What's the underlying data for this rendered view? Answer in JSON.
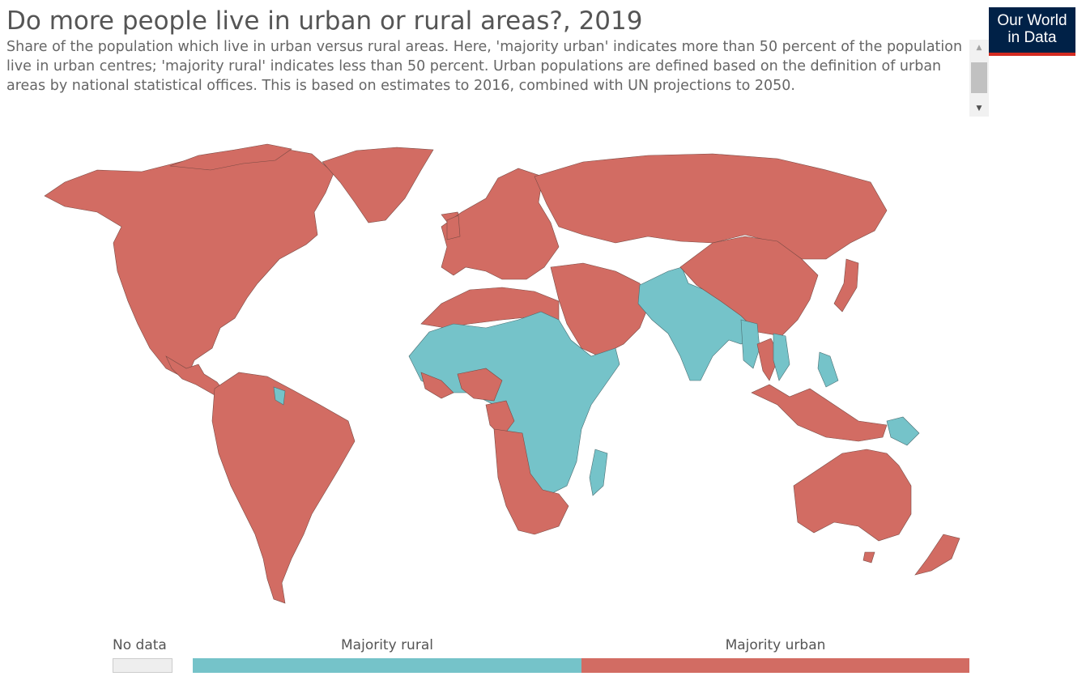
{
  "header": {
    "title": "Do more people live in urban or rural areas?, 2019",
    "subtitle": "Share of the population which live in urban versus rural areas. Here, 'majority urban' indicates more than 50 percent of the population live in urban centres; 'majority rural' indicates less than 50 percent. Urban populations are defined based on the definition of urban areas by national statistical offices. This is based on estimates to 2016, combined with UN projections to 2050."
  },
  "logo": {
    "line1": "Our World",
    "line2": "in Data"
  },
  "colors": {
    "majority_urban": "#d26c63",
    "majority_rural": "#75c3c9",
    "no_data": "#eeeeee",
    "logo_background": "#002147",
    "logo_accent": "#d42b21"
  },
  "legend": {
    "no_data": "No data",
    "rural": "Majority rural",
    "urban": "Majority urban"
  }
}
